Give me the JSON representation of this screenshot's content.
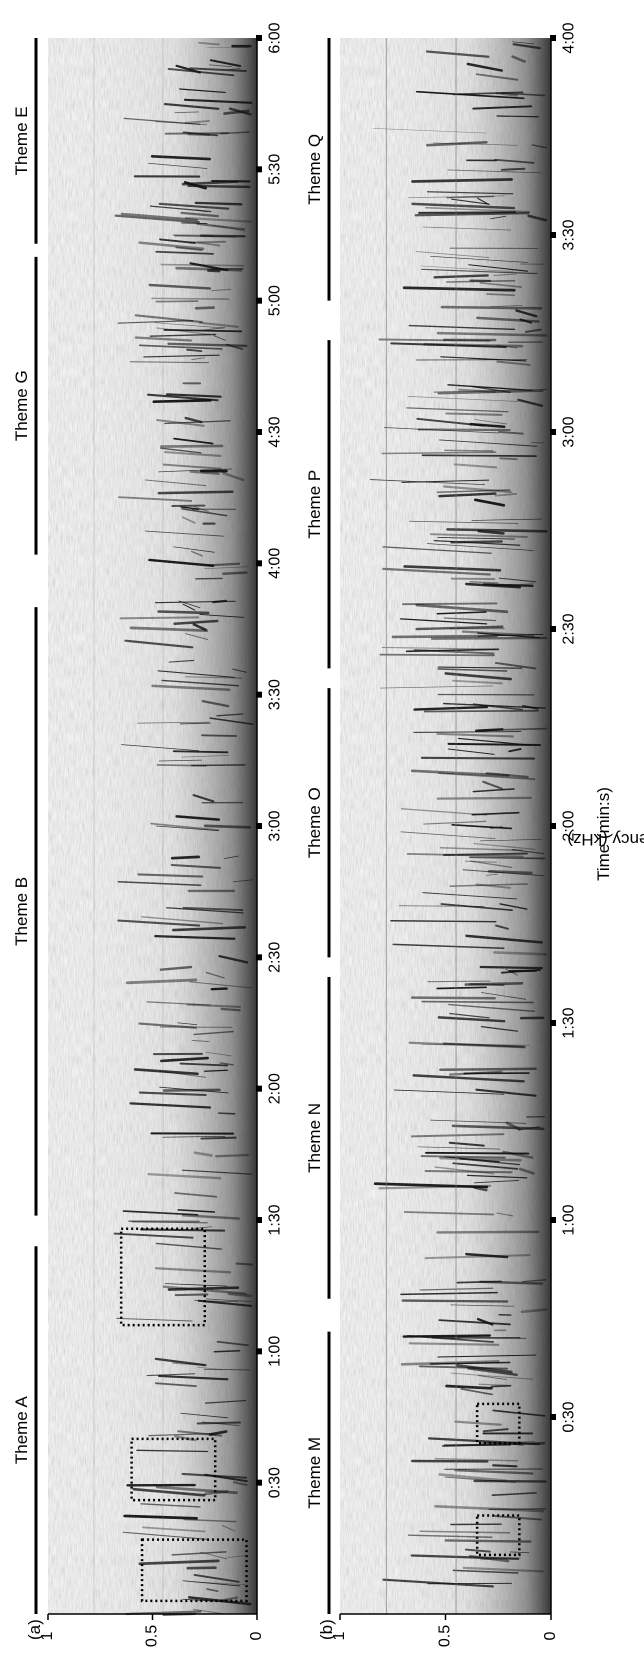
{
  "figure": {
    "xlabel": "Time (min:s)",
    "ylabel": "Frequency (kHz)"
  },
  "chart_data": [
    {
      "type": "spectrogram",
      "panel_label": "(a)",
      "x_unit": "min:s",
      "x_range": [
        0,
        360
      ],
      "ylim": [
        0,
        1
      ],
      "y_ticks": [
        {
          "value": 1,
          "label": "1"
        },
        {
          "value": 0.5,
          "label": "0.5"
        },
        {
          "value": 0,
          "label": "0"
        }
      ],
      "x_ticks": [
        {
          "value": 30,
          "label": "0:30"
        },
        {
          "value": 60,
          "label": "1:00"
        },
        {
          "value": 90,
          "label": "1:30"
        },
        {
          "value": 120,
          "label": "2:00"
        },
        {
          "value": 150,
          "label": "2:30"
        },
        {
          "value": 180,
          "label": "3:00"
        },
        {
          "value": 210,
          "label": "3:30"
        },
        {
          "value": 240,
          "label": "4:00"
        },
        {
          "value": 270,
          "label": "4:30"
        },
        {
          "value": 300,
          "label": "5:00"
        },
        {
          "value": 330,
          "label": "5:30"
        },
        {
          "value": 360,
          "label": "6:00"
        }
      ],
      "themes": [
        {
          "label": "Theme A",
          "start": 0,
          "end": 84
        },
        {
          "label": "Theme B",
          "start": 91,
          "end": 230
        },
        {
          "label": "Theme G",
          "start": 242,
          "end": 310
        },
        {
          "label": "Theme E",
          "start": 313,
          "end": 360
        }
      ],
      "boxes": [
        {
          "t_start": 3,
          "t_end": 17,
          "f_low": 0.05,
          "f_high": 0.55
        },
        {
          "t_start": 26,
          "t_end": 40,
          "f_low": 0.2,
          "f_high": 0.6
        },
        {
          "t_start": 66,
          "t_end": 88,
          "f_low": 0.25,
          "f_high": 0.65
        }
      ]
    },
    {
      "type": "spectrogram",
      "panel_label": "(b)",
      "x_unit": "min:s",
      "x_range": [
        0,
        240
      ],
      "ylim": [
        0,
        1
      ],
      "y_ticks": [
        {
          "value": 1,
          "label": "1"
        },
        {
          "value": 0.5,
          "label": "0.5"
        },
        {
          "value": 0,
          "label": "0"
        }
      ],
      "x_ticks": [
        {
          "value": 30,
          "label": "0:30"
        },
        {
          "value": 60,
          "label": "1:00"
        },
        {
          "value": 90,
          "label": "1:30"
        },
        {
          "value": 120,
          "label": "2:00"
        },
        {
          "value": 150,
          "label": "2:30"
        },
        {
          "value": 180,
          "label": "3:00"
        },
        {
          "value": 210,
          "label": "3:30"
        },
        {
          "value": 240,
          "label": "4:00"
        }
      ],
      "themes": [
        {
          "label": "Theme M",
          "start": 0,
          "end": 43
        },
        {
          "label": "Theme N",
          "start": 48,
          "end": 97
        },
        {
          "label": "Theme O",
          "start": 100,
          "end": 141
        },
        {
          "label": "Theme P",
          "start": 144,
          "end": 194
        },
        {
          "label": "Theme Q",
          "start": 200,
          "end": 240
        }
      ],
      "boxes": [
        {
          "t_start": 9,
          "t_end": 15,
          "f_low": 0.15,
          "f_high": 0.35
        },
        {
          "t_start": 26,
          "t_end": 32,
          "f_low": 0.15,
          "f_high": 0.35
        }
      ]
    }
  ]
}
